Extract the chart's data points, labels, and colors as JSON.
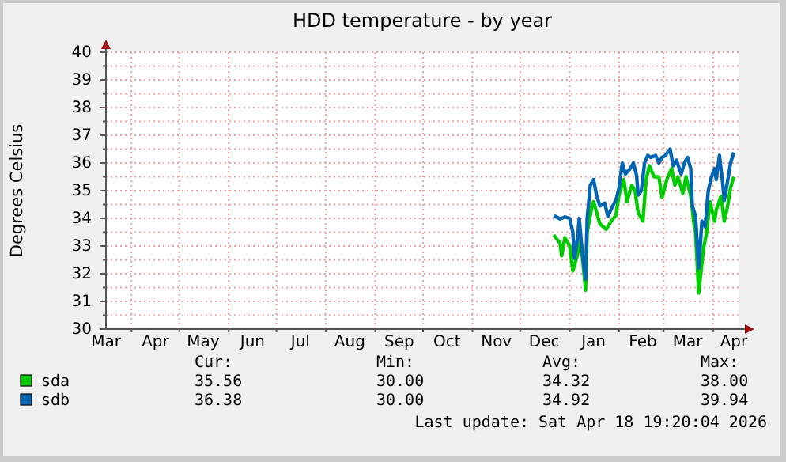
{
  "chart_data": {
    "type": "line",
    "title": "HDD temperature - by year",
    "ylabel": "Degrees Celsius",
    "xlim": [
      "2025-03-16",
      "2026-04-17"
    ],
    "xticks": [
      {
        "value": "2025-03-16",
        "label": "Mar"
      },
      {
        "value": "2025-04-16",
        "label": "Apr"
      },
      {
        "value": "2025-05-16",
        "label": "May"
      },
      {
        "value": "2025-06-16",
        "label": "Jun"
      },
      {
        "value": "2025-07-16",
        "label": "Jul"
      },
      {
        "value": "2025-08-16",
        "label": "Aug"
      },
      {
        "value": "2025-09-16",
        "label": "Sep"
      },
      {
        "value": "2025-10-16",
        "label": "Oct"
      },
      {
        "value": "2025-11-16",
        "label": "Nov"
      },
      {
        "value": "2025-12-16",
        "label": "Dec"
      },
      {
        "value": "2026-01-16",
        "label": "Jan"
      },
      {
        "value": "2026-02-16",
        "label": "Feb"
      },
      {
        "value": "2026-03-16",
        "label": "Mar"
      },
      {
        "value": "2026-04-14",
        "label": "Apr"
      },
      {
        "value": "2025-04-01",
        "label": null
      },
      {
        "value": "2025-05-01",
        "label": null
      },
      {
        "value": "2025-06-01",
        "label": null
      },
      {
        "value": "2025-07-01",
        "label": null
      },
      {
        "value": "2025-08-01",
        "label": null
      },
      {
        "value": "2025-09-01",
        "label": null
      },
      {
        "value": "2025-10-01",
        "label": null
      },
      {
        "value": "2025-11-01",
        "label": null
      },
      {
        "value": "2025-12-01",
        "label": null
      },
      {
        "value": "2026-01-01",
        "label": null
      },
      {
        "value": "2026-02-01",
        "label": null
      },
      {
        "value": "2026-03-01",
        "label": null
      },
      {
        "value": "2026-04-01",
        "label": null
      }
    ],
    "ylim": [
      30,
      40
    ],
    "yticks": [
      30,
      31,
      32,
      33,
      34,
      35,
      36,
      37,
      38,
      39,
      40,
      {
        "value": 30.5,
        "label": null
      },
      {
        "value": 31.5,
        "label": null
      },
      {
        "value": 32.5,
        "label": null
      },
      {
        "value": 33.5,
        "label": null
      },
      {
        "value": 34.5,
        "label": null
      },
      {
        "value": 35.5,
        "label": null
      },
      {
        "value": 36.5,
        "label": null
      },
      {
        "value": 37.5,
        "label": null
      },
      {
        "value": 38.5,
        "label": null
      },
      {
        "value": 39.5,
        "label": null
      }
    ],
    "grid": true,
    "legend": "bottom left",
    "line_style": "solid",
    "series": [
      {
        "name": "sda",
        "color": "#00cc00",
        "x": [
          "2025-12-22",
          "2025-12-26",
          "2025-12-27",
          "2025-12-29",
          "2026-01-01",
          "2026-01-03",
          "2026-01-06",
          "2026-01-08",
          "2026-01-11",
          "2026-01-12",
          "2026-01-15",
          "2026-01-16",
          "2026-01-18",
          "2026-01-20",
          "2026-01-24",
          "2026-01-27",
          "2026-01-30",
          "2026-02-01",
          "2026-02-04",
          "2026-02-06",
          "2026-02-09",
          "2026-02-11",
          "2026-02-13",
          "2026-02-16",
          "2026-02-18",
          "2026-02-20",
          "2026-02-23",
          "2026-02-26",
          "2026-02-28",
          "2026-03-03",
          "2026-03-06",
          "2026-03-08",
          "2026-03-10",
          "2026-03-13",
          "2026-03-15",
          "2026-03-18",
          "2026-03-20",
          "2026-03-21",
          "2026-03-23",
          "2026-03-26",
          "2026-03-28",
          "2026-03-30",
          "2026-04-02",
          "2026-04-03",
          "2026-04-06",
          "2026-04-08",
          "2026-04-10",
          "2026-04-12",
          "2026-04-14"
        ],
        "values": [
          33.4,
          33.1,
          32.65,
          33.3,
          33.0,
          32.1,
          32.7,
          33.2,
          31.4,
          33.5,
          34.45,
          34.6,
          34.2,
          33.8,
          33.6,
          33.9,
          34.1,
          34.85,
          35.4,
          34.6,
          35.2,
          35.0,
          34.2,
          33.9,
          35.4,
          35.9,
          35.5,
          35.5,
          34.75,
          35.4,
          35.8,
          35.2,
          35.5,
          34.9,
          35.5,
          34.8,
          33.8,
          33.5,
          31.3,
          32.9,
          33.5,
          34.6,
          33.9,
          34.3,
          34.8,
          33.9,
          34.4,
          35.1,
          35.5
        ]
      },
      {
        "name": "sdb",
        "color": "#0066b3",
        "x": [
          "2025-12-22",
          "2025-12-26",
          "2025-12-29",
          "2026-01-01",
          "2026-01-03",
          "2026-01-04",
          "2026-01-06",
          "2026-01-07",
          "2026-01-09",
          "2026-01-11",
          "2026-01-12",
          "2026-01-14",
          "2026-01-16",
          "2026-01-18",
          "2026-01-20",
          "2026-01-23",
          "2026-01-25",
          "2026-01-28",
          "2026-01-30",
          "2026-02-01",
          "2026-02-03",
          "2026-02-05",
          "2026-02-08",
          "2026-02-10",
          "2026-02-12",
          "2026-02-13",
          "2026-02-15",
          "2026-02-17",
          "2026-02-19",
          "2026-02-21",
          "2026-02-24",
          "2026-02-26",
          "2026-02-28",
          "2026-03-02",
          "2026-03-05",
          "2026-03-07",
          "2026-03-09",
          "2026-03-12",
          "2026-03-14",
          "2026-03-16",
          "2026-03-18",
          "2026-03-19",
          "2026-03-21",
          "2026-03-23",
          "2026-03-25",
          "2026-03-27",
          "2026-03-29",
          "2026-03-31",
          "2026-04-02",
          "2026-04-03",
          "2026-04-05",
          "2026-04-07",
          "2026-04-08",
          "2026-04-10",
          "2026-04-12",
          "2026-04-14"
        ],
        "values": [
          34.1,
          33.98,
          34.05,
          34.0,
          33.5,
          32.55,
          33.3,
          34.0,
          32.7,
          31.8,
          34.0,
          35.2,
          35.4,
          34.8,
          34.45,
          34.55,
          34.07,
          34.45,
          34.65,
          35.1,
          36.0,
          35.6,
          35.8,
          36.0,
          35.55,
          34.84,
          35.0,
          36.0,
          36.27,
          36.2,
          36.27,
          36.0,
          36.2,
          36.27,
          36.5,
          35.9,
          36.1,
          35.6,
          36.0,
          36.2,
          35.8,
          34.45,
          34.07,
          32.2,
          33.9,
          33.7,
          35.0,
          35.5,
          35.8,
          35.4,
          36.27,
          35.3,
          34.65,
          35.3,
          36.0,
          36.38
        ]
      }
    ],
    "annotations": [
      "Cur:",
      "Min:",
      "Avg:",
      "Max:",
      "35.56",
      "30.00",
      "34.32",
      "38.00",
      "36.38",
      "30.00",
      "34.92",
      "39.94",
      "Last update: Sat Apr 18 19:20:04 2026"
    ]
  }
}
